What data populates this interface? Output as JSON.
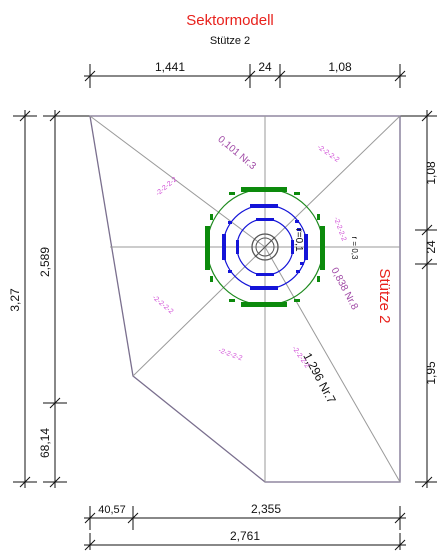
{
  "title": "Sektormodell",
  "subtitle": "Stütze 2",
  "column_label": "Stütze 2",
  "dimensions": {
    "top": [
      "1,441",
      "24",
      "1,08"
    ],
    "left_outer": "3,27",
    "left_inner": [
      "2,589",
      "68,14"
    ],
    "right": [
      "1,08",
      "24",
      "1,95"
    ],
    "bottom_upper": [
      "40,57",
      "2,355"
    ],
    "bottom_total": "2,761"
  },
  "sector_labels": [
    "0,101 Nr.3",
    "0,838 Nr.8",
    "1,296 Nr.7"
  ],
  "radius_label": "r=0,1",
  "small_note": "r = 0,3",
  "faint_labels": [
    "-2-2-2-2",
    "-2-2-2-2",
    "-2-2-2-2",
    "-2-2-2-2",
    "-2-2-2-2",
    "-2-2-2-2"
  ],
  "colors": {
    "title": "#e8211c",
    "outline": "#7a6f8e",
    "sector_lines": "#9a9a9a",
    "outer_ring": "#1e8a1e",
    "reinforcement_outer": "#0c8a0c",
    "inner_rings": "#1414d8",
    "column": "#555555"
  }
}
